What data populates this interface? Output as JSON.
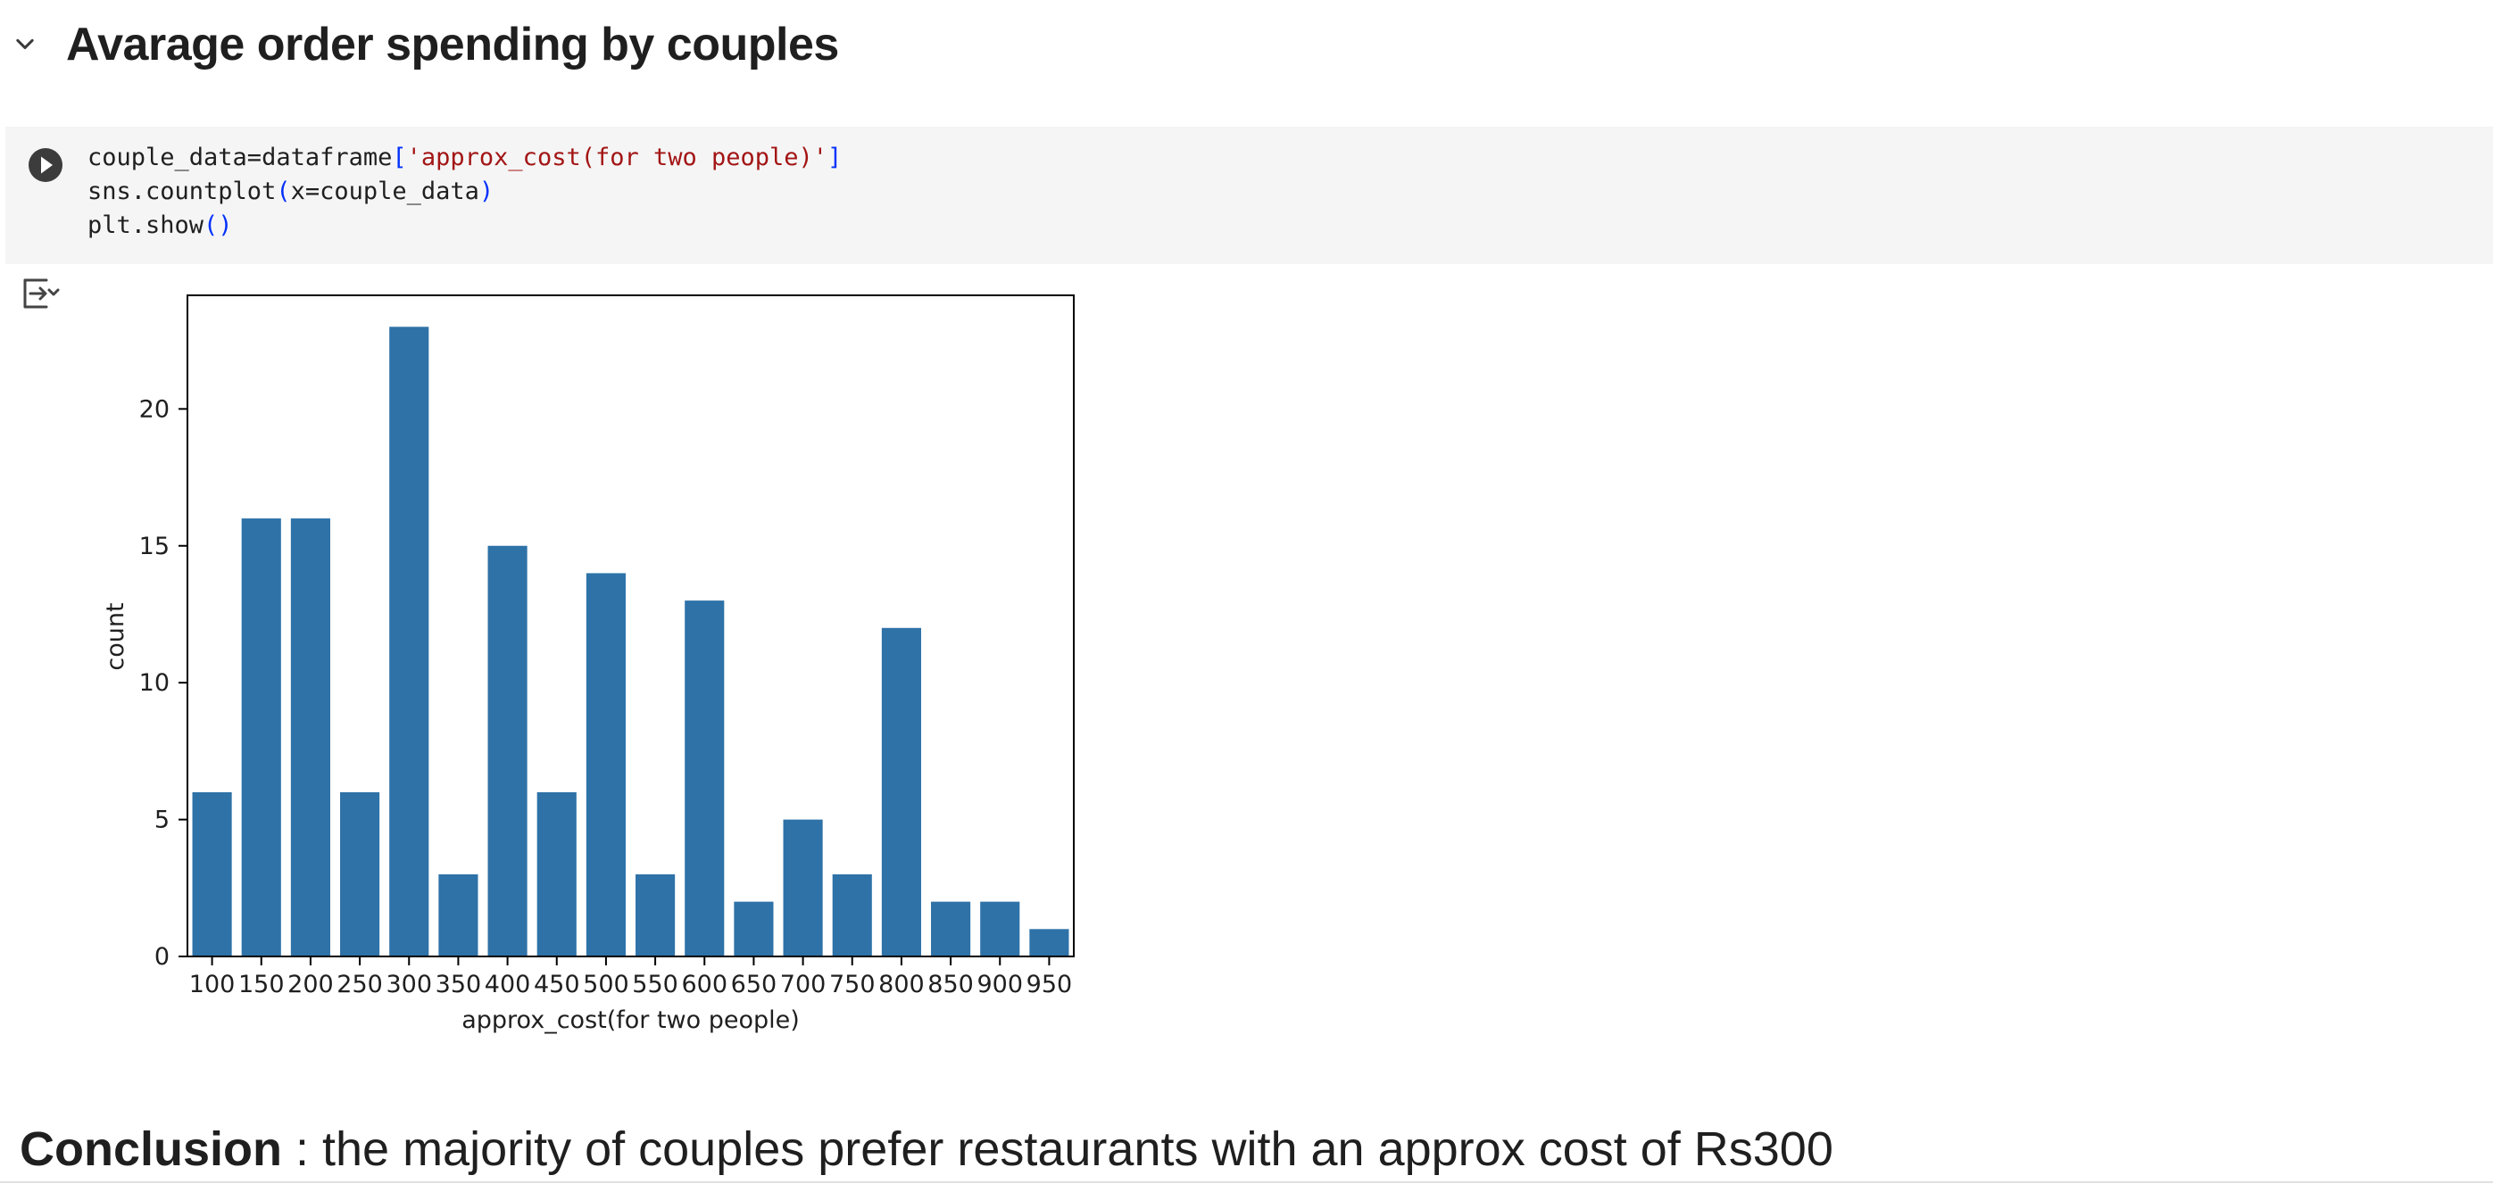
{
  "section": {
    "title": "Avarage order spending by couples",
    "collapse_icon": "chevron-down-icon"
  },
  "code_cell": {
    "run_icon": "play-circle-icon",
    "lines": [
      {
        "parts": [
          {
            "t": "couple_data=dataframe",
            "k": "plain"
          },
          {
            "t": "[",
            "k": "br"
          },
          {
            "t": "'approx_cost(for two people)'",
            "k": "str"
          },
          {
            "t": "]",
            "k": "br"
          }
        ]
      },
      {
        "parts": [
          {
            "t": "sns.countplot",
            "k": "plain"
          },
          {
            "t": "(",
            "k": "br"
          },
          {
            "t": "x=couple_data",
            "k": "plain"
          },
          {
            "t": ")",
            "k": "br"
          }
        ]
      },
      {
        "parts": [
          {
            "t": "plt.show",
            "k": "plain"
          },
          {
            "t": "()",
            "k": "br"
          }
        ]
      }
    ]
  },
  "output": {
    "toggle_icon": "output-collapse-icon"
  },
  "chart_data": {
    "type": "bar",
    "categories": [
      "100",
      "150",
      "200",
      "250",
      "300",
      "350",
      "400",
      "450",
      "500",
      "550",
      "600",
      "650",
      "700",
      "750",
      "800",
      "850",
      "900",
      "950"
    ],
    "values": [
      6,
      16,
      16,
      6,
      23,
      3,
      15,
      6,
      14,
      3,
      13,
      2,
      5,
      3,
      12,
      2,
      2,
      1
    ],
    "xlabel": "approx_cost(for two people)",
    "ylabel": "count",
    "ylim": [
      0,
      24.15
    ],
    "yticks": [
      0,
      5,
      10,
      15,
      20
    ],
    "bar_color": "#2e72a8",
    "grid": false,
    "legend": "none"
  },
  "conclusion": {
    "bold": "Conclusion",
    "text": " : the majority of couples prefer restaurants with an approx cost of Rs300"
  }
}
